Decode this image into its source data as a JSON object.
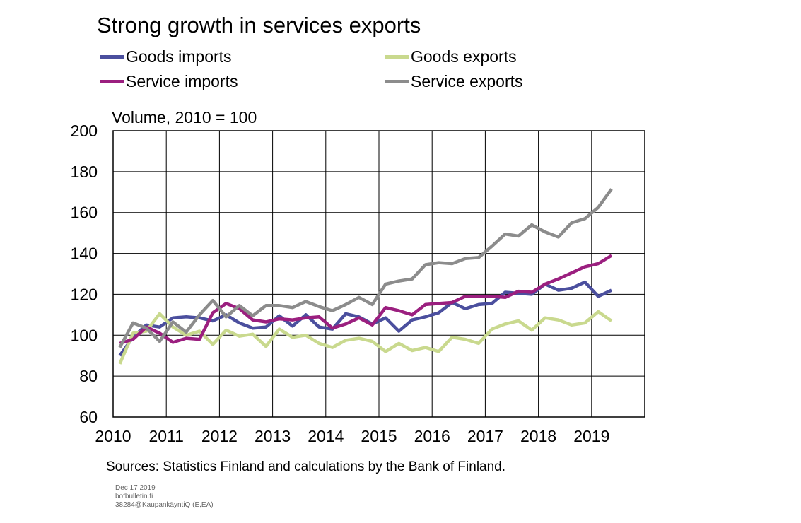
{
  "chart_data": {
    "type": "line",
    "title": "Strong growth in services exports",
    "ylabel": "Volume, 2010 = 100",
    "xlabel": "",
    "ylim": [
      60,
      200
    ],
    "yticks": [
      "60",
      "80",
      "100",
      "120",
      "140",
      "160",
      "180",
      "200"
    ],
    "xlim": [
      2010,
      2020
    ],
    "xticks": [
      "2010",
      "2011",
      "2012",
      "2013",
      "2014",
      "2015",
      "2016",
      "2017",
      "2018",
      "2019"
    ],
    "grid": true,
    "legend_position": "top",
    "series": [
      {
        "name": "Goods imports",
        "color": "#4b4f9e",
        "points": [
          [
            2010.125,
            90
          ],
          [
            2010.375,
            99
          ],
          [
            2010.625,
            105
          ],
          [
            2010.875,
            104
          ],
          [
            2011.125,
            108.5
          ],
          [
            2011.375,
            109
          ],
          [
            2011.625,
            108.5
          ],
          [
            2011.875,
            107
          ],
          [
            2012.125,
            110
          ],
          [
            2012.375,
            106
          ],
          [
            2012.625,
            103.5
          ],
          [
            2012.875,
            104
          ],
          [
            2013.125,
            109.5
          ],
          [
            2013.375,
            104.5
          ],
          [
            2013.625,
            110
          ],
          [
            2013.875,
            104
          ],
          [
            2014.125,
            103
          ],
          [
            2014.375,
            110.5
          ],
          [
            2014.625,
            109
          ],
          [
            2014.875,
            105.5
          ],
          [
            2015.125,
            108.5
          ],
          [
            2015.375,
            102
          ],
          [
            2015.625,
            107.5
          ],
          [
            2015.875,
            109
          ],
          [
            2016.125,
            111
          ],
          [
            2016.375,
            116
          ],
          [
            2016.625,
            113
          ],
          [
            2016.875,
            115
          ],
          [
            2017.125,
            115.5
          ],
          [
            2017.375,
            121
          ],
          [
            2017.625,
            120.5
          ],
          [
            2017.875,
            120
          ],
          [
            2018.125,
            125
          ],
          [
            2018.375,
            122
          ],
          [
            2018.625,
            123
          ],
          [
            2018.875,
            126
          ],
          [
            2019.125,
            119
          ],
          [
            2019.375,
            122
          ]
        ]
      },
      {
        "name": "Goods exports",
        "color": "#c9d98e",
        "points": [
          [
            2010.125,
            86
          ],
          [
            2010.375,
            101
          ],
          [
            2010.625,
            102
          ],
          [
            2010.875,
            110.5
          ],
          [
            2011.125,
            104
          ],
          [
            2011.375,
            100
          ],
          [
            2011.625,
            102
          ],
          [
            2011.875,
            95.5
          ],
          [
            2012.125,
            102.5
          ],
          [
            2012.375,
            99.5
          ],
          [
            2012.625,
            100.5
          ],
          [
            2012.875,
            94.5
          ],
          [
            2013.125,
            103
          ],
          [
            2013.375,
            99
          ],
          [
            2013.625,
            100
          ],
          [
            2013.875,
            96
          ],
          [
            2014.125,
            94
          ],
          [
            2014.375,
            97.5
          ],
          [
            2014.625,
            98.5
          ],
          [
            2014.875,
            97
          ],
          [
            2015.125,
            92
          ],
          [
            2015.375,
            96
          ],
          [
            2015.625,
            92.5
          ],
          [
            2015.875,
            94
          ],
          [
            2016.125,
            92
          ],
          [
            2016.375,
            99
          ],
          [
            2016.625,
            98
          ],
          [
            2016.875,
            96
          ],
          [
            2017.125,
            103
          ],
          [
            2017.375,
            105.5
          ],
          [
            2017.625,
            107
          ],
          [
            2017.875,
            102.5
          ],
          [
            2018.125,
            108.5
          ],
          [
            2018.375,
            107.5
          ],
          [
            2018.625,
            105
          ],
          [
            2018.875,
            106
          ],
          [
            2019.125,
            111.5
          ],
          [
            2019.375,
            107
          ]
        ]
      },
      {
        "name": "Service imports",
        "color": "#9b1f7f",
        "points": [
          [
            2010.125,
            96
          ],
          [
            2010.375,
            98
          ],
          [
            2010.625,
            104
          ],
          [
            2010.875,
            101
          ],
          [
            2011.125,
            96.5
          ],
          [
            2011.375,
            98.5
          ],
          [
            2011.625,
            98
          ],
          [
            2011.875,
            111
          ],
          [
            2012.125,
            115.5
          ],
          [
            2012.375,
            113
          ],
          [
            2012.625,
            107.5
          ],
          [
            2012.875,
            106.5
          ],
          [
            2013.125,
            108
          ],
          [
            2013.375,
            107.5
          ],
          [
            2013.625,
            108.5
          ],
          [
            2013.875,
            109
          ],
          [
            2014.125,
            103.5
          ],
          [
            2014.375,
            105.5
          ],
          [
            2014.625,
            108.5
          ],
          [
            2014.875,
            105
          ],
          [
            2015.125,
            113.5
          ],
          [
            2015.375,
            112
          ],
          [
            2015.625,
            110
          ],
          [
            2015.875,
            115
          ],
          [
            2016.125,
            115.5
          ],
          [
            2016.375,
            116
          ],
          [
            2016.625,
            119
          ],
          [
            2016.875,
            119
          ],
          [
            2017.125,
            119
          ],
          [
            2017.375,
            118.5
          ],
          [
            2017.625,
            121.5
          ],
          [
            2017.875,
            121
          ],
          [
            2018.125,
            125
          ],
          [
            2018.375,
            127.5
          ],
          [
            2018.625,
            130.5
          ],
          [
            2018.875,
            133.5
          ],
          [
            2019.125,
            135
          ],
          [
            2019.375,
            139
          ]
        ]
      },
      {
        "name": "Service exports",
        "color": "#8c8c8c",
        "points": [
          [
            2010.125,
            94
          ],
          [
            2010.375,
            106
          ],
          [
            2010.625,
            103.5
          ],
          [
            2010.875,
            97
          ],
          [
            2011.125,
            106.5
          ],
          [
            2011.375,
            101.5
          ],
          [
            2011.625,
            110
          ],
          [
            2011.875,
            117
          ],
          [
            2012.125,
            109
          ],
          [
            2012.375,
            114.5
          ],
          [
            2012.625,
            109.5
          ],
          [
            2012.875,
            114.5
          ],
          [
            2013.125,
            114.5
          ],
          [
            2013.375,
            113.5
          ],
          [
            2013.625,
            116.5
          ],
          [
            2013.875,
            114
          ],
          [
            2014.125,
            112
          ],
          [
            2014.375,
            115
          ],
          [
            2014.625,
            118.5
          ],
          [
            2014.875,
            115
          ],
          [
            2015.125,
            125
          ],
          [
            2015.375,
            126.5
          ],
          [
            2015.625,
            127.5
          ],
          [
            2015.875,
            134.5
          ],
          [
            2016.125,
            135.5
          ],
          [
            2016.375,
            135
          ],
          [
            2016.625,
            137.5
          ],
          [
            2016.875,
            138
          ],
          [
            2017.125,
            143.5
          ],
          [
            2017.375,
            149.5
          ],
          [
            2017.625,
            148.5
          ],
          [
            2017.875,
            154
          ],
          [
            2018.125,
            150.5
          ],
          [
            2018.375,
            148
          ],
          [
            2018.625,
            155
          ],
          [
            2018.875,
            157
          ],
          [
            2019.125,
            162.5
          ],
          [
            2019.375,
            171.5
          ]
        ]
      }
    ]
  },
  "sources": "Sources: Statistics Finland and calculations by the Bank of Finland.",
  "footer": {
    "date": "Dec 17 2019",
    "site": "bofbulletin.fi",
    "code": "38284@KaupankäyntiQ (E,EA)"
  }
}
